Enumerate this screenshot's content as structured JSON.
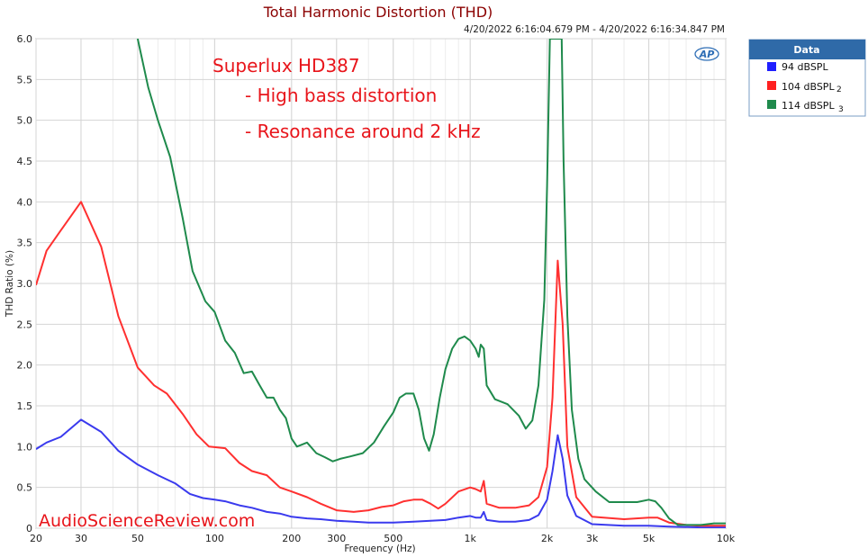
{
  "chart_data": {
    "type": "line",
    "title": "Total Harmonic Distortion (THD)",
    "timestamp": "4/20/2022 6:16:04.679 PM - 4/20/2022 6:16:34.847 PM",
    "xlabel": "Frequency (Hz)",
    "ylabel": "THD Ratio (%)",
    "x_scale": "log",
    "xlim": [
      20,
      10000
    ],
    "ylim": [
      0,
      6.0
    ],
    "grid": true,
    "x_ticks": [
      {
        "value": 20,
        "label": "20"
      },
      {
        "value": 30,
        "label": "30"
      },
      {
        "value": 50,
        "label": "50"
      },
      {
        "value": 100,
        "label": "100"
      },
      {
        "value": 200,
        "label": "200"
      },
      {
        "value": 300,
        "label": "300"
      },
      {
        "value": 500,
        "label": "500"
      },
      {
        "value": 1000,
        "label": "1k"
      },
      {
        "value": 2000,
        "label": "2k"
      },
      {
        "value": 3000,
        "label": "3k"
      },
      {
        "value": 5000,
        "label": "5k"
      },
      {
        "value": 10000,
        "label": "10k"
      }
    ],
    "y_ticks": [
      {
        "value": 0,
        "label": "0"
      },
      {
        "value": 0.5,
        "label": "0.5"
      },
      {
        "value": 1.0,
        "label": "1.0"
      },
      {
        "value": 1.5,
        "label": "1.5"
      },
      {
        "value": 2.0,
        "label": "2.0"
      },
      {
        "value": 2.5,
        "label": "2.5"
      },
      {
        "value": 3.0,
        "label": "3.0"
      },
      {
        "value": 3.5,
        "label": "3.5"
      },
      {
        "value": 4.0,
        "label": "4.0"
      },
      {
        "value": 4.5,
        "label": "4.5"
      },
      {
        "value": 5.0,
        "label": "5.0"
      },
      {
        "value": 5.5,
        "label": "5.5"
      },
      {
        "value": 6.0,
        "label": "6.0"
      }
    ],
    "annotations": [
      "Superlux HD387",
      "- High bass distortion",
      "- Resonance around 2 kHz"
    ],
    "watermark": "AudioScienceReview.com",
    "legend": {
      "title": "Data",
      "placement": "top-right outside plot",
      "entries": [
        {
          "label": "94 dBSPL",
          "sub": "",
          "color": "#1f1fff"
        },
        {
          "label": "104 dBSPL",
          "sub": "2",
          "color": "#ff2020"
        },
        {
          "label": "114  dBSPL",
          "sub": "3",
          "color": "#1f8a4c"
        }
      ]
    },
    "series": [
      {
        "color": "#3a3aee",
        "points": [
          [
            20,
            0.97
          ],
          [
            22,
            1.05
          ],
          [
            25,
            1.12
          ],
          [
            30,
            1.33
          ],
          [
            36,
            1.18
          ],
          [
            42,
            0.95
          ],
          [
            50,
            0.78
          ],
          [
            60,
            0.65
          ],
          [
            70,
            0.55
          ],
          [
            80,
            0.42
          ],
          [
            90,
            0.37
          ],
          [
            100,
            0.35
          ],
          [
            110,
            0.33
          ],
          [
            125,
            0.28
          ],
          [
            140,
            0.25
          ],
          [
            160,
            0.2
          ],
          [
            180,
            0.18
          ],
          [
            200,
            0.14
          ],
          [
            230,
            0.12
          ],
          [
            260,
            0.11
          ],
          [
            300,
            0.09
          ],
          [
            350,
            0.08
          ],
          [
            400,
            0.07
          ],
          [
            500,
            0.07
          ],
          [
            600,
            0.08
          ],
          [
            700,
            0.09
          ],
          [
            800,
            0.1
          ],
          [
            900,
            0.13
          ],
          [
            1000,
            0.15
          ],
          [
            1050,
            0.13
          ],
          [
            1100,
            0.13
          ],
          [
            1130,
            0.2
          ],
          [
            1160,
            0.1
          ],
          [
            1300,
            0.08
          ],
          [
            1500,
            0.08
          ],
          [
            1700,
            0.1
          ],
          [
            1850,
            0.16
          ],
          [
            2000,
            0.35
          ],
          [
            2100,
            0.7
          ],
          [
            2200,
            1.14
          ],
          [
            2300,
            0.85
          ],
          [
            2400,
            0.4
          ],
          [
            2600,
            0.15
          ],
          [
            3000,
            0.05
          ],
          [
            4000,
            0.03
          ],
          [
            5000,
            0.03
          ],
          [
            6000,
            0.02
          ],
          [
            8000,
            0.01
          ],
          [
            10000,
            0.01
          ]
        ]
      },
      {
        "color": "#ff3030",
        "points": [
          [
            20,
            2.98
          ],
          [
            22,
            3.4
          ],
          [
            25,
            3.65
          ],
          [
            30,
            4.0
          ],
          [
            36,
            3.45
          ],
          [
            42,
            2.6
          ],
          [
            50,
            1.97
          ],
          [
            58,
            1.75
          ],
          [
            65,
            1.65
          ],
          [
            75,
            1.4
          ],
          [
            85,
            1.15
          ],
          [
            95,
            1.0
          ],
          [
            110,
            0.98
          ],
          [
            125,
            0.8
          ],
          [
            140,
            0.7
          ],
          [
            160,
            0.65
          ],
          [
            180,
            0.5
          ],
          [
            200,
            0.45
          ],
          [
            230,
            0.38
          ],
          [
            260,
            0.3
          ],
          [
            300,
            0.22
          ],
          [
            350,
            0.2
          ],
          [
            400,
            0.22
          ],
          [
            450,
            0.26
          ],
          [
            500,
            0.28
          ],
          [
            550,
            0.33
          ],
          [
            600,
            0.35
          ],
          [
            650,
            0.35
          ],
          [
            700,
            0.3
          ],
          [
            750,
            0.24
          ],
          [
            800,
            0.3
          ],
          [
            900,
            0.45
          ],
          [
            1000,
            0.5
          ],
          [
            1050,
            0.48
          ],
          [
            1100,
            0.45
          ],
          [
            1130,
            0.58
          ],
          [
            1160,
            0.3
          ],
          [
            1300,
            0.25
          ],
          [
            1500,
            0.25
          ],
          [
            1700,
            0.28
          ],
          [
            1850,
            0.38
          ],
          [
            2000,
            0.75
          ],
          [
            2100,
            1.6
          ],
          [
            2200,
            3.28
          ],
          [
            2300,
            2.5
          ],
          [
            2400,
            1.0
          ],
          [
            2600,
            0.38
          ],
          [
            3000,
            0.14
          ],
          [
            4000,
            0.11
          ],
          [
            5000,
            0.13
          ],
          [
            5400,
            0.13
          ],
          [
            6000,
            0.07
          ],
          [
            7000,
            0.04
          ],
          [
            8000,
            0.03
          ],
          [
            10000,
            0.03
          ]
        ]
      },
      {
        "color": "#1f8a4c",
        "points": [
          [
            50,
            6.0
          ],
          [
            55,
            5.4
          ],
          [
            60,
            5.0
          ],
          [
            67,
            4.55
          ],
          [
            75,
            3.8
          ],
          [
            82,
            3.15
          ],
          [
            92,
            2.78
          ],
          [
            100,
            2.65
          ],
          [
            110,
            2.3
          ],
          [
            120,
            2.15
          ],
          [
            130,
            1.9
          ],
          [
            140,
            1.92
          ],
          [
            150,
            1.75
          ],
          [
            160,
            1.6
          ],
          [
            170,
            1.6
          ],
          [
            180,
            1.45
          ],
          [
            190,
            1.35
          ],
          [
            200,
            1.1
          ],
          [
            210,
            1.0
          ],
          [
            230,
            1.05
          ],
          [
            250,
            0.92
          ],
          [
            270,
            0.87
          ],
          [
            290,
            0.82
          ],
          [
            310,
            0.85
          ],
          [
            340,
            0.88
          ],
          [
            380,
            0.92
          ],
          [
            420,
            1.05
          ],
          [
            460,
            1.25
          ],
          [
            500,
            1.42
          ],
          [
            530,
            1.6
          ],
          [
            560,
            1.65
          ],
          [
            600,
            1.65
          ],
          [
            630,
            1.45
          ],
          [
            660,
            1.1
          ],
          [
            690,
            0.95
          ],
          [
            720,
            1.15
          ],
          [
            760,
            1.6
          ],
          [
            800,
            1.95
          ],
          [
            850,
            2.2
          ],
          [
            900,
            2.32
          ],
          [
            950,
            2.35
          ],
          [
            1000,
            2.3
          ],
          [
            1050,
            2.2
          ],
          [
            1080,
            2.1
          ],
          [
            1100,
            2.25
          ],
          [
            1130,
            2.2
          ],
          [
            1160,
            1.75
          ],
          [
            1250,
            1.58
          ],
          [
            1400,
            1.52
          ],
          [
            1550,
            1.38
          ],
          [
            1650,
            1.22
          ],
          [
            1750,
            1.32
          ],
          [
            1850,
            1.75
          ],
          [
            1950,
            2.8
          ],
          [
            2000,
            4.2
          ],
          [
            2050,
            6.0
          ],
          [
            2280,
            6.0
          ],
          [
            2320,
            4.5
          ],
          [
            2400,
            2.6
          ],
          [
            2500,
            1.45
          ],
          [
            2650,
            0.85
          ],
          [
            2800,
            0.6
          ],
          [
            3100,
            0.45
          ],
          [
            3500,
            0.32
          ],
          [
            4000,
            0.32
          ],
          [
            4500,
            0.32
          ],
          [
            5000,
            0.35
          ],
          [
            5300,
            0.33
          ],
          [
            5600,
            0.25
          ],
          [
            6000,
            0.12
          ],
          [
            6500,
            0.04
          ],
          [
            8000,
            0.04
          ],
          [
            9000,
            0.06
          ],
          [
            10000,
            0.06
          ]
        ]
      }
    ]
  }
}
